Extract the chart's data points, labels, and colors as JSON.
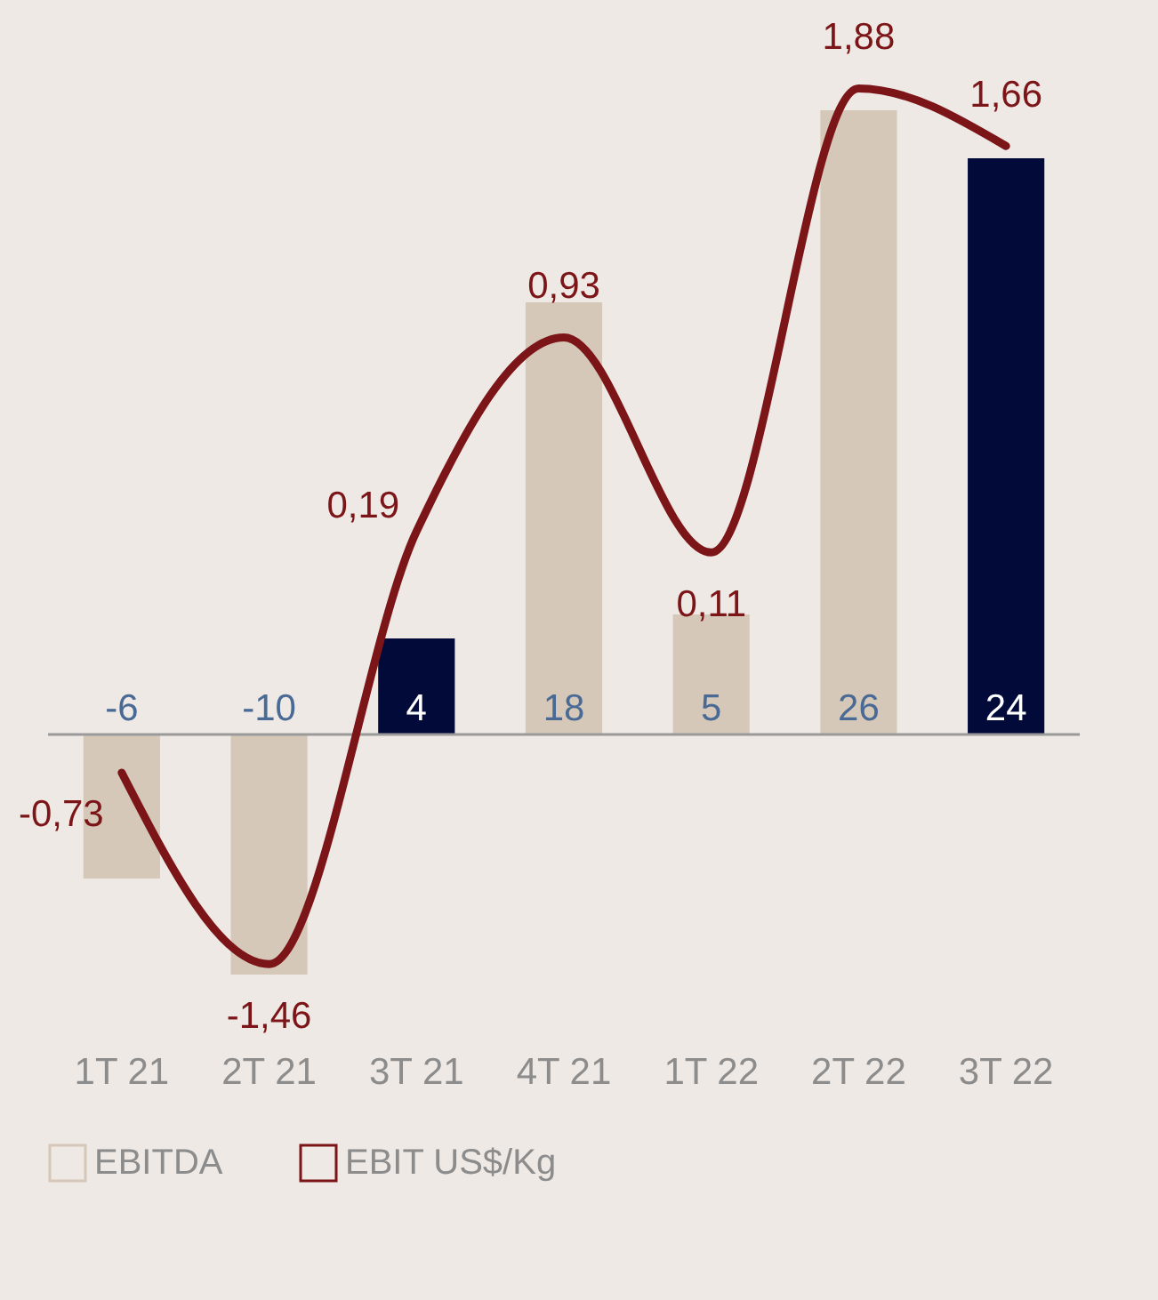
{
  "chart_data": {
    "type": "bar",
    "categories": [
      "1T 21",
      "2T 21",
      "3T 21",
      "4T 21",
      "1T 22",
      "2T 22",
      "3T 22"
    ],
    "series": [
      {
        "name": "EBITDA",
        "color": "#d5c8b8",
        "colors": [
          "#d5c8b8",
          "#d5c8b8",
          "#020a3a",
          "#d5c8b8",
          "#d5c8b8",
          "#d5c8b8",
          "#020a3a"
        ],
        "values": [
          -6,
          -10,
          4,
          18,
          5,
          26,
          24
        ]
      },
      {
        "name": "EBIT US$/Kg",
        "type": "line",
        "axis": "y2",
        "color": "#7b1518",
        "values": [
          -0.73,
          -1.46,
          0.19,
          0.93,
          0.11,
          1.88,
          1.66
        ],
        "value_labels": [
          "-0,73",
          "-1,46",
          "0,19",
          "0,93",
          "0,11",
          "1,88",
          "1,66"
        ]
      }
    ],
    "ref_lines": [
      {
        "axis": "y",
        "value": 0,
        "color": "#9a9a9a"
      }
    ],
    "data_labels": true,
    "legend": "bottom",
    "grid": false
  }
}
